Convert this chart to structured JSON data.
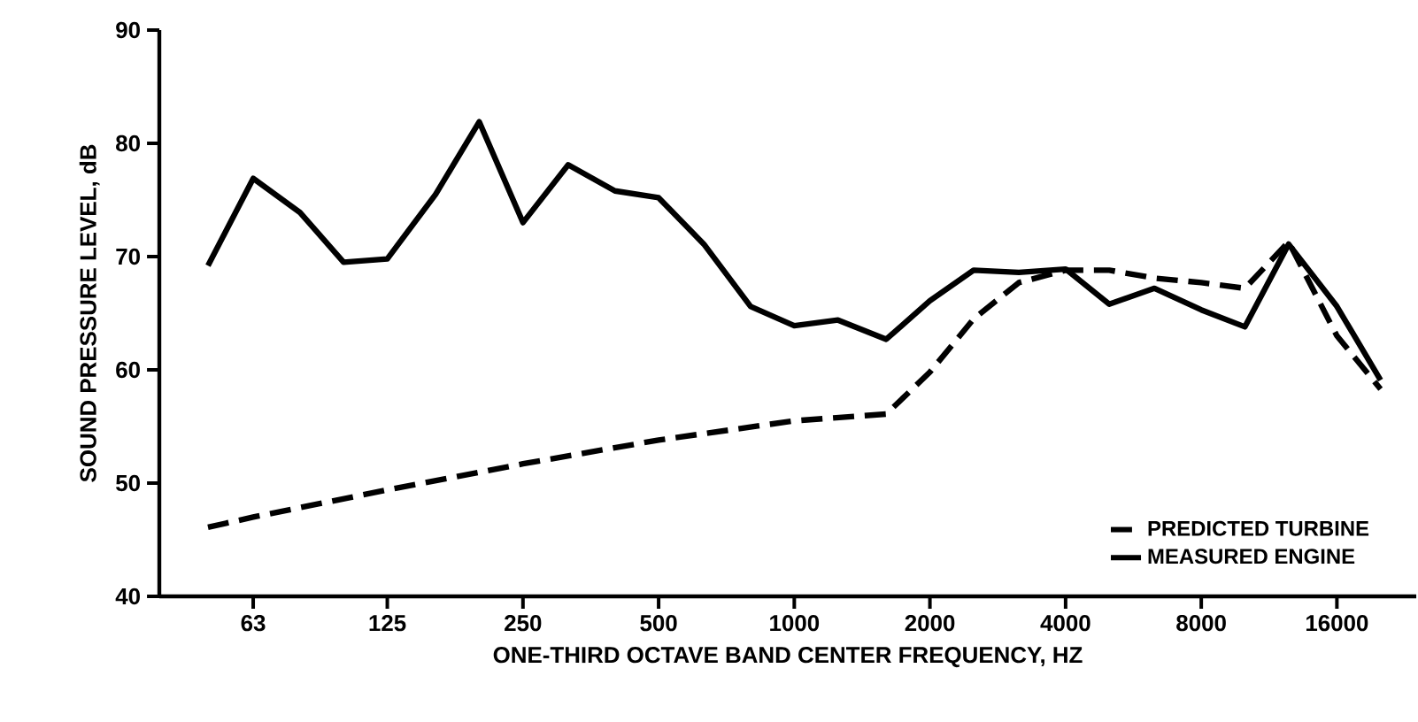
{
  "chart_data": {
    "type": "line",
    "xlabel": "ONE-THIRD OCTAVE BAND CENTER FREQUENCY, HZ",
    "ylabel": "SOUND PRESSURE LEVEL, dB",
    "log": "x",
    "xlim": [
      39,
      24000
    ],
    "ylim": [
      40,
      90
    ],
    "xticks": [
      63,
      125,
      250,
      500,
      1000,
      2000,
      4000,
      8000,
      16000
    ],
    "yticks": [
      40,
      50,
      60,
      70,
      80,
      90
    ],
    "grid": false,
    "legend": "bottom right",
    "marker": "none",
    "x": [
      50,
      63,
      80,
      100,
      125,
      160,
      200,
      250,
      315,
      400,
      500,
      630,
      800,
      1000,
      1250,
      1600,
      2000,
      2500,
      3150,
      4000,
      5000,
      6300,
      8000,
      10000,
      12500,
      16000,
      20000
    ],
    "series": [
      {
        "name": "PREDICTED TURBINE",
        "color": "#000000",
        "line_style": "dashed",
        "values": [
          46.1,
          47,
          null,
          null,
          49.4,
          null,
          null,
          51.7,
          null,
          null,
          53.8,
          null,
          null,
          55.5,
          null,
          56.1,
          59.8,
          64.5,
          67.7,
          68.8,
          68.8,
          68.1,
          67.7,
          67.2,
          71.3,
          63,
          58.3
        ]
      },
      {
        "name": "MEASURED ENGINE",
        "color": "#000000",
        "line_style": "solid",
        "values": [
          69.2,
          76.9,
          73.9,
          69.5,
          69.8,
          75.5,
          81.9,
          73,
          78.1,
          75.8,
          75.2,
          71.1,
          65.6,
          63.9,
          64.4,
          62.7,
          66.1,
          68.8,
          68.6,
          68.9,
          65.8,
          67.2,
          65.3,
          63.8,
          71.1,
          65.6,
          59.1
        ]
      }
    ]
  }
}
